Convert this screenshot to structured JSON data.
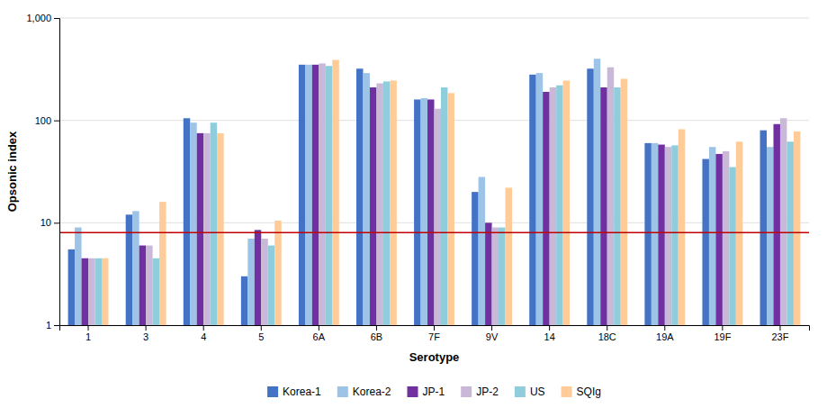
{
  "chart_data": {
    "type": "bar",
    "xlabel": "Serotype",
    "ylabel": "Opsonic index",
    "categories": [
      "1",
      "3",
      "4",
      "5",
      "6A",
      "6B",
      "7F",
      "9V",
      "14",
      "18C",
      "19A",
      "19F",
      "23F"
    ],
    "series": [
      {
        "name": "Korea-1",
        "color": "#4472C4",
        "values": [
          5.5,
          12,
          105,
          3,
          350,
          320,
          160,
          20,
          280,
          320,
          60,
          42,
          80
        ]
      },
      {
        "name": "Korea-2",
        "color": "#9DC3E6",
        "values": [
          9,
          13,
          95,
          7,
          350,
          290,
          165,
          28,
          290,
          400,
          60,
          55,
          55
        ]
      },
      {
        "name": "JP-1",
        "color": "#7030A0",
        "values": [
          4.5,
          6,
          75,
          8.5,
          350,
          210,
          160,
          10,
          190,
          210,
          58,
          47,
          92
        ]
      },
      {
        "name": "JP-2",
        "color": "#C9B8D8",
        "values": [
          4.5,
          6,
          75,
          7,
          360,
          230,
          130,
          9,
          210,
          330,
          55,
          50,
          105
        ]
      },
      {
        "name": "US",
        "color": "#8FCDDD",
        "values": [
          4.5,
          4.5,
          95,
          6,
          340,
          240,
          210,
          9,
          220,
          210,
          57,
          35,
          62
        ]
      },
      {
        "name": "SQIg",
        "color": "#FFCC99",
        "values": [
          4.5,
          16,
          75,
          10.5,
          390,
          245,
          185,
          22,
          245,
          255,
          82,
          62,
          78
        ]
      }
    ],
    "log": "y",
    "ylim": [
      1,
      1000
    ],
    "yticks": [
      1,
      10,
      100,
      {
        "value": 1000,
        "label": "1,000"
      }
    ],
    "grid": true,
    "legend": "bottom",
    "reference_line": {
      "value": 8,
      "color": "#C00000"
    }
  }
}
